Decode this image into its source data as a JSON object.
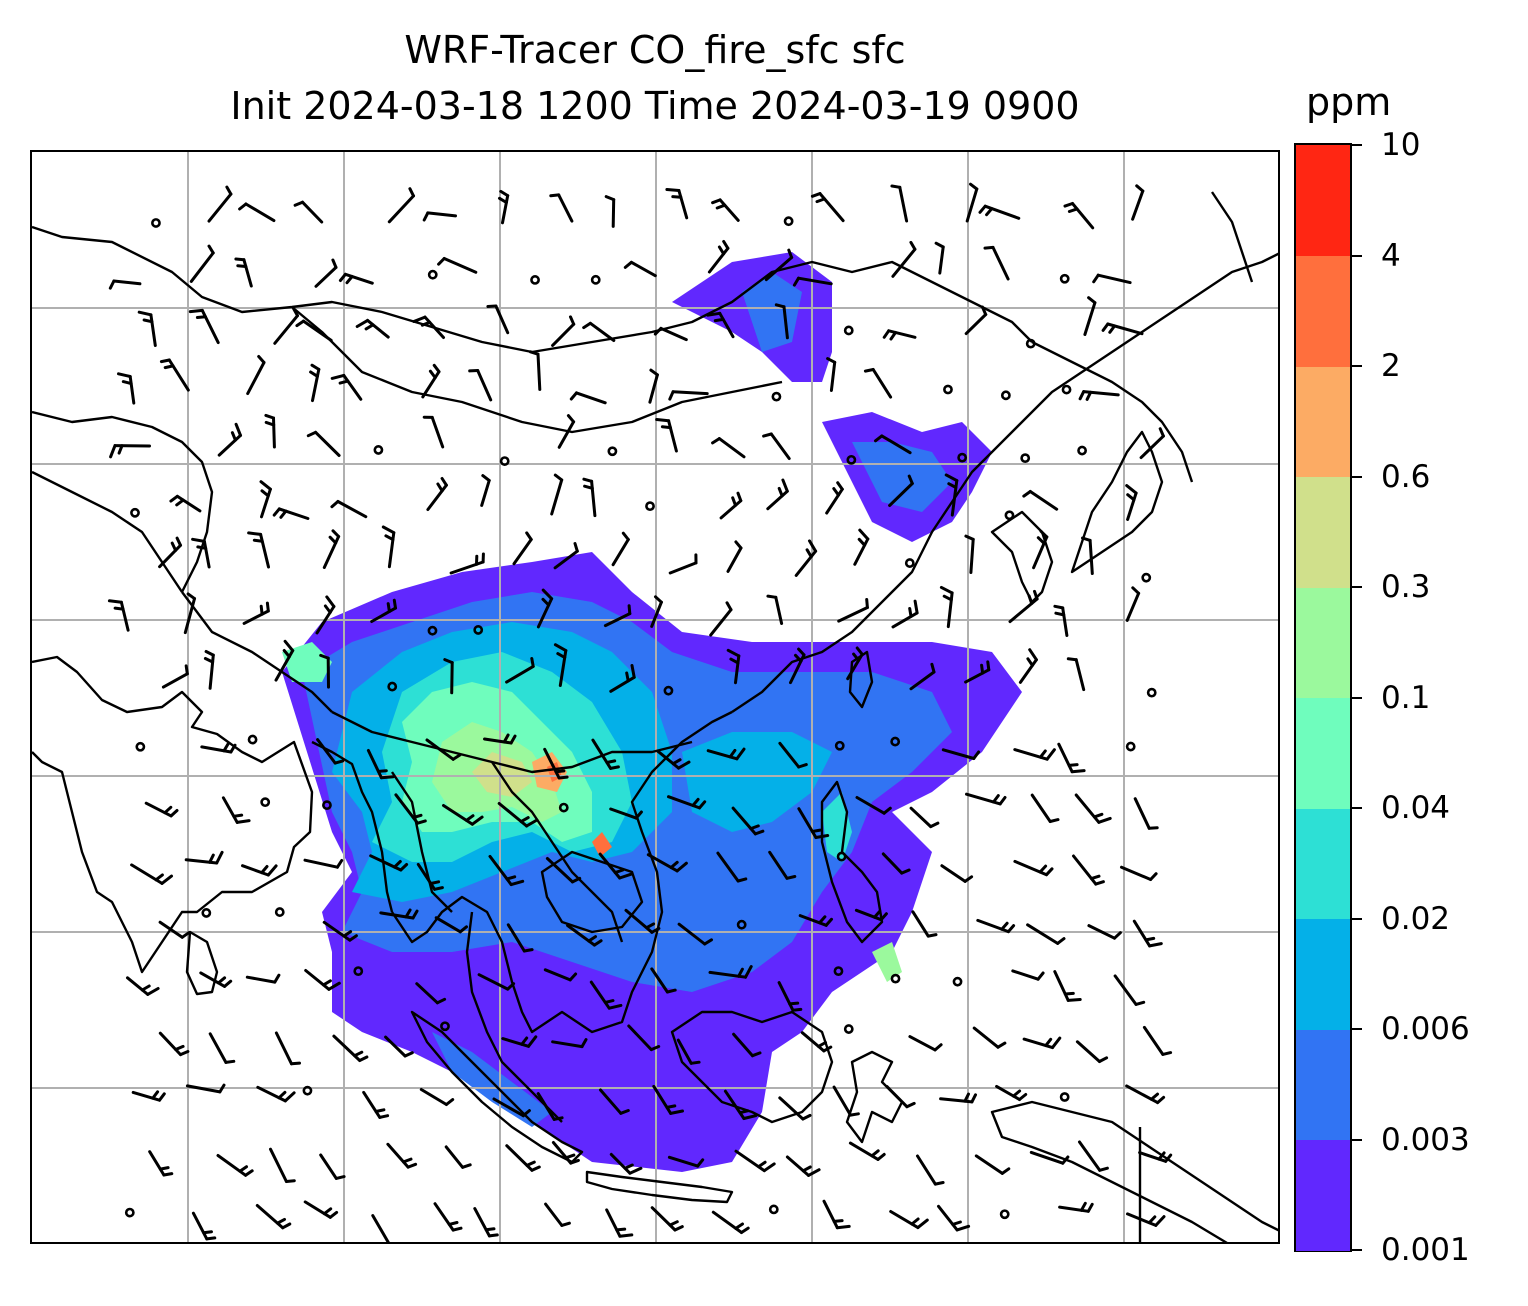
{
  "title": {
    "line1": "WRF-Tracer CO_fire_sfc sfc",
    "line2": "Init 2024-03-18 1200 Time 2024-03-19 0900"
  },
  "colorbar": {
    "units": "ppm",
    "levels": [
      "0.001",
      "0.003",
      "0.006",
      "0.02",
      "0.04",
      "0.1",
      "0.3",
      "0.6",
      "2",
      "4",
      "10"
    ],
    "colors": [
      "#6128fe",
      "#3174f3",
      "#04b0e8",
      "#2de0d5",
      "#6ffdbd",
      "#9bf99d",
      "#d0e08b",
      "#fcab64",
      "#ff6f3d",
      "#ff2613"
    ]
  },
  "map": {
    "gridline_color": "#b0b0b0",
    "coastline_color": "#000000",
    "barb_color": "#000000"
  }
}
